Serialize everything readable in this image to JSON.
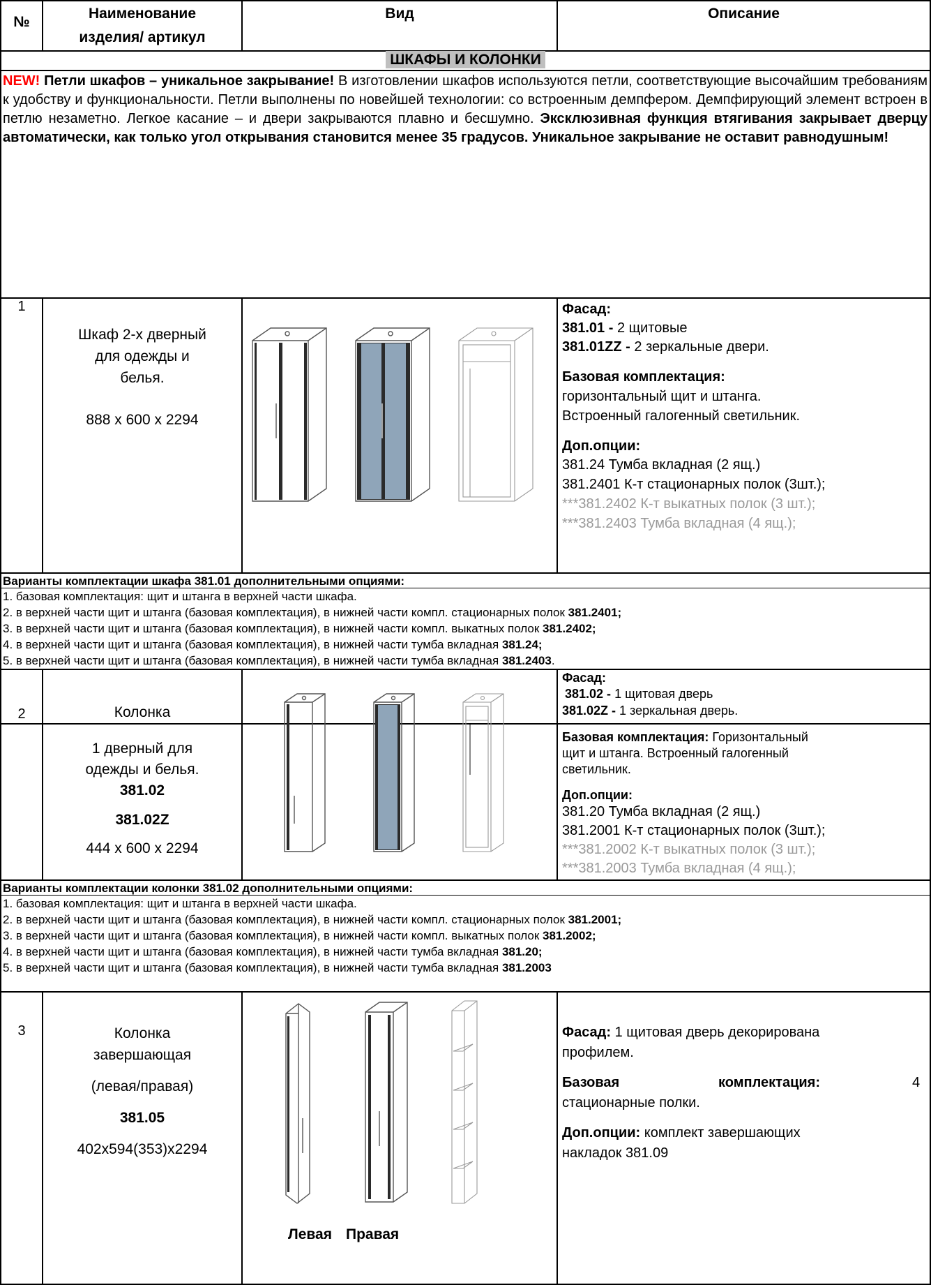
{
  "header": {
    "col_no": "№",
    "col_name_line1": "Наименование",
    "col_name_line2": "изделия/ артикул",
    "col_view": "Вид",
    "col_desc": "Описание"
  },
  "section_title": "ШКАФЫ И КОЛОНКИ",
  "intro": {
    "new": "NEW!",
    "bold1": "Петли шкафов – уникальное закрывание!",
    "text1": " В изготовлении шкафов используются петли, соответствующие высочайшим требованиям к удобству и функциональности. Петли выполнены по новейшей технологии: со встроенным демпфером. Демпфирующий элемент встроен в петлю незаметно. Легкое касание – и двери закрываются плавно и бесшумно. ",
    "bold2": "Эксклюзивная функция втягивания закрывает дверцу автоматически, как только угол открывания становится менее 35 градусов. Уникальное закрывание не оставит равнодушным!"
  },
  "items": [
    {
      "num": "1",
      "name_line1": "Шкаф 2-х дверный",
      "name_line2": "для одежды и",
      "name_line3": "белья.",
      "size": "888 x 600 x 2294",
      "facade_label": "Фасад:",
      "facade_a_code": "381.01 -",
      "facade_a_text": " 2 щитовые",
      "facade_b_code": "381.01ZZ -",
      "facade_b_text": " 2 зеркальные двери.",
      "base_label": "Базовая комплектация:",
      "base_line1": "горизонтальный щит и штанга.",
      "base_line2": "Встроенный галогенный светильник.",
      "opts_label": "Доп.опции:",
      "opt1": "381.24    Тумба вкладная (2 ящ.)",
      "opt2": "381.2401 К-т стационарных полок (3шт.);",
      "opt3": "***381.2402 К-т выкатных полок (3 шт.);",
      "opt4": "***381.2403 Тумба вкладная (4 ящ.);"
    },
    {
      "num": "2",
      "name_line1": "Колонка",
      "name_line2": "1 дверный для",
      "name_line3": "одежды и белья.",
      "code1": "381.02",
      "code2": "381.02Z",
      "size": "444 x 600 x 2294",
      "facade_label": "Фасад:",
      "facade_a_code": "381.02 -",
      "facade_a_text": " 1 щитовая дверь",
      "facade_b_code": "381.02Z -",
      "facade_b_text": " 1 зеркальная дверь.",
      "base_label": "Базовая комплектация:",
      "base_text1": " Горизонтальный",
      "base_text2": "щит и штанга.   Встроенный галогенный",
      "base_text3": "светильник.",
      "opts_label": "Доп.опции:",
      "opt1": "381.20    Тумба вкладная (2 ящ.)",
      "opt2": "381.2001 К-т стационарных полок (3шт.);",
      "opt3": "***381.2002 К-т выкатных полок (3 шт.);",
      "opt4": "***381.2003 Тумба вкладная (4 ящ.);"
    },
    {
      "num": "3",
      "name_line1": "Колонка",
      "name_line2": "завершающая",
      "name_line3": "(левая/правая)",
      "code1": "381.05",
      "size": "402x594(353)x2294",
      "facade_label": "Фасад:",
      "facade_text": " 1 щитовая дверь декорирована",
      "facade_text2": "профилем.",
      "base_label": "Базовая",
      "base_label2": "комплектация:",
      "base_num": "4",
      "base_text": "стационарные полки.",
      "opts_label": "Доп.опции:",
      "opts_text1": " комплект завершающих",
      "opts_text2": "накладок 381.09",
      "label_left": "Левая",
      "label_right": "Правая"
    }
  ],
  "variants1": {
    "title": "Варианты комплектации шкафа 381.01 дополнительными опциями:",
    "lines": [
      {
        "text": "1.  базовая комплектация: щит и штанга в верхней части шкафа.",
        "code": ""
      },
      {
        "text": "2.  в верхней части щит и штанга (базовая комплектация), в нижней части компл. стационарных полок ",
        "code": "381.2401;"
      },
      {
        "text": "3.  в верхней части щит и штанга (базовая комплектация), в нижней части компл. выкатных полок ",
        "code": "381.2402;"
      },
      {
        "text": "4.  в верхней части щит и штанга (базовая комплектация), в нижней части тумба вкладная ",
        "code": "381.24;"
      },
      {
        "text": "5.  в верхней части щит и штанга (базовая комплектация), в нижней части тумба вкладная ",
        "code": "381.2403",
        "tail": "."
      }
    ]
  },
  "variants2": {
    "title": "Варианты комплектации колонки 381.02 дополнительными опциями:",
    "lines": [
      {
        "text": "1.  базовая комплектация: щит и штанга в верхней части шкафа.",
        "code": ""
      },
      {
        "text": "2.  в верхней части щит и штанга (базовая комплектация), в нижней части компл. стационарных полок ",
        "code": "381.2001;"
      },
      {
        "text": "3.  в верхней части щит и штанга (базовая комплектация), в нижней части компл. выкатных полок ",
        "code": "381.2002;"
      },
      {
        "text": "4.  в верхней части щит и штанга (базовая комплектация), в нижней части тумба вкладная ",
        "code": "381.20;"
      },
      {
        "text": "5.  в верхней части щит и штанга (базовая комплектация), в нижней части тумба вкладная ",
        "code": "381.2003",
        "tail": ""
      }
    ]
  }
}
